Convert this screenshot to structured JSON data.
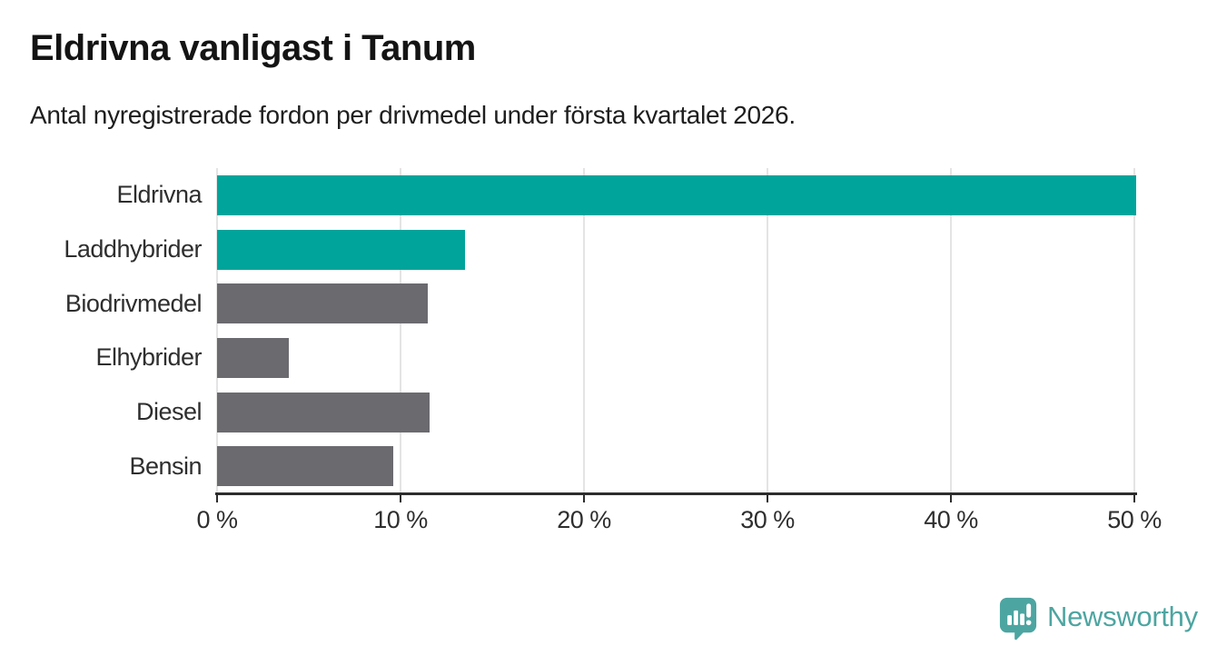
{
  "header": {
    "title": "Eldrivna vanligast i Tanum",
    "subtitle": "Antal nyregistrerade fordon per drivmedel under första kvartalet 2026."
  },
  "chart_data": {
    "type": "bar",
    "orientation": "horizontal",
    "title": "Eldrivna vanligast i Tanum",
    "subtitle": "Antal nyregistrerade fordon per drivmedel under första kvartalet 2026.",
    "categories": [
      "Eldrivna",
      "Laddhybrider",
      "Biodrivmedel",
      "Elhybrider",
      "Diesel",
      "Bensin"
    ],
    "values": [
      50.1,
      13.5,
      11.5,
      3.9,
      11.6,
      9.6
    ],
    "unit": "%",
    "xlabel": "",
    "ylabel": "",
    "xlim": [
      0,
      50
    ],
    "x_ticks": [
      0,
      10,
      20,
      30,
      40,
      50
    ],
    "x_tick_labels": [
      "0 %",
      "10 %",
      "20 %",
      "30 %",
      "40 %",
      "50 %"
    ],
    "bar_colors": [
      "#00a49b",
      "#00a49b",
      "#6a6a6f",
      "#6a6a6f",
      "#6a6a6f",
      "#6a6a6f"
    ],
    "highlight_color": "#00a49b",
    "default_color": "#6a6a6f",
    "gridline_color": "#e4e4e4",
    "axis_color": "#2d2d2d",
    "grid": true,
    "legend": false
  },
  "footer": {
    "brand": "Newsworthy",
    "brand_color": "#4da5a1",
    "logo_icon": "speech-bubble-bar-chart-icon"
  }
}
